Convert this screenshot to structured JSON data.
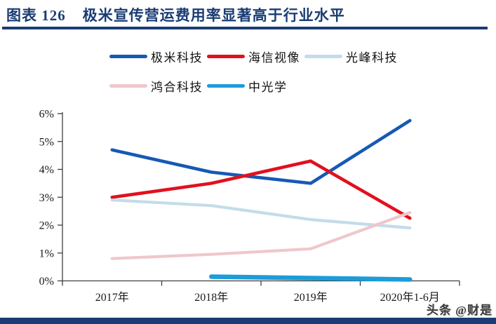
{
  "header": {
    "figure_label": "图表  126",
    "figure_title": "极米宣传营运费用率显著高于行业水平"
  },
  "watermark": {
    "text": "头条 @财是"
  },
  "colors": {
    "navy": "#1A3C74",
    "axis": "#3F3F3F",
    "tick_text": "#1a1a1a"
  },
  "chart_data": {
    "type": "line",
    "title": "图表 126 极米宣传营运费用率显著高于行业水平",
    "categories": [
      "2017年",
      "2018年",
      "2019年",
      "2020年1-6月"
    ],
    "y_tick_labels": [
      "6%",
      "5%",
      "4%",
      "3%",
      "2%",
      "1%",
      "0%"
    ],
    "ylim": [
      0,
      6
    ],
    "unit": "%",
    "grid": false,
    "legend_position": "top",
    "series": [
      {
        "name": "极米科技",
        "color": "#1659B5",
        "line_width": 4.6,
        "values": [
          4.7,
          3.9,
          3.5,
          5.75
        ]
      },
      {
        "name": "海信视像",
        "color": "#E2101E",
        "line_width": 4.6,
        "values": [
          3.0,
          3.5,
          4.3,
          2.25
        ]
      },
      {
        "name": "光峰科技",
        "color": "#C3DCE9",
        "line_width": 4.2,
        "values": [
          2.9,
          2.7,
          2.2,
          1.9
        ]
      },
      {
        "name": "鸿合科技",
        "color": "#EFC7CC",
        "line_width": 4.2,
        "values": [
          0.8,
          0.95,
          1.15,
          2.45
        ]
      },
      {
        "name": "中光学",
        "color": "#1C9CD9",
        "line_width": 6.5,
        "values": [
          null,
          0.15,
          0.1,
          0.05
        ]
      }
    ]
  }
}
